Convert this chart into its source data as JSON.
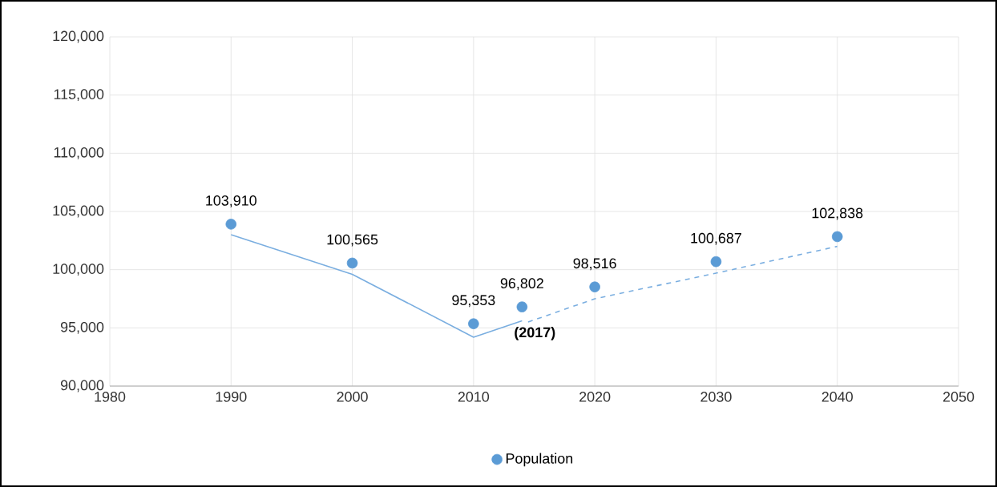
{
  "chart_data": {
    "type": "scatter",
    "x": [
      1990,
      2000,
      2010,
      2014,
      2020,
      2030,
      2040
    ],
    "series": [
      {
        "name": "Population",
        "color": "#5b9bd5",
        "marker": "circle",
        "values": [
          103910,
          100565,
          95353,
          96802,
          98516,
          100687,
          102838
        ],
        "value_labels": [
          "103,910",
          "100,565",
          "95,353",
          "96,802",
          "98,516",
          "100,687",
          "102,838"
        ]
      },
      {
        "type": "line",
        "color": "#7aaee0",
        "line_style": "solid",
        "marker": "none",
        "x": [
          1990,
          2000,
          2010,
          2014
        ],
        "values": [
          103000,
          99600,
          94200,
          95600
        ]
      },
      {
        "type": "line",
        "color": "#7aaee0",
        "line_style": "dashed",
        "marker": "none",
        "x": [
          2014.5,
          2020,
          2030,
          2040
        ],
        "values": [
          95500,
          97500,
          99700,
          102000
        ]
      }
    ],
    "annotations": [
      {
        "text": "(2017)",
        "x": 2014,
        "y": 96802
      }
    ],
    "xlim": [
      1980,
      2050
    ],
    "xticks": [
      1980,
      1990,
      2000,
      2010,
      2020,
      2030,
      2040,
      2050
    ],
    "ylim": [
      90000,
      120000
    ],
    "yticks": [
      {
        "value": 90000,
        "label": "90,000"
      },
      {
        "value": 95000,
        "label": "95,000"
      },
      {
        "value": 100000,
        "label": "100,000"
      },
      {
        "value": 105000,
        "label": "105,000"
      },
      {
        "value": 110000,
        "label": "110,000"
      },
      {
        "value": 115000,
        "label": "115,000"
      },
      {
        "value": 120000,
        "label": "120,000"
      }
    ],
    "grid": true,
    "legend": "bottom"
  }
}
